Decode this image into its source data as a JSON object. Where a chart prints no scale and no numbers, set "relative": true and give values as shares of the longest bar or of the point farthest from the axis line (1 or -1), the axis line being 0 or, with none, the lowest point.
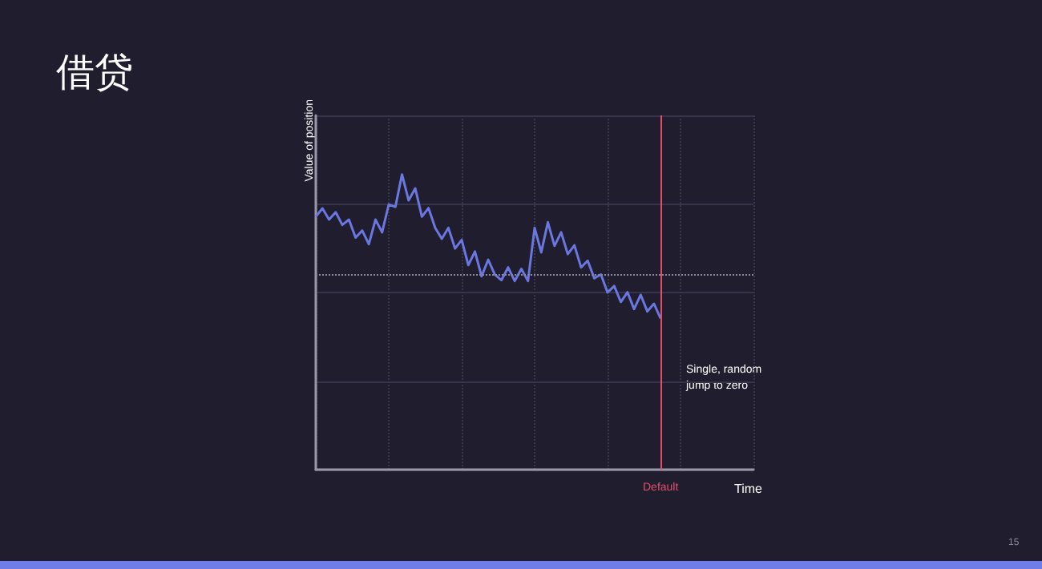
{
  "chart_data": {
    "type": "line",
    "title": "借贷",
    "xlabel": "Time",
    "ylabel": "Value of position",
    "relative": true,
    "grid": true,
    "marker": "none",
    "line_style": "solid",
    "categories": [
      null,
      null,
      null,
      null,
      null,
      null,
      null,
      null,
      null,
      null,
      null,
      null,
      null,
      null,
      null,
      null,
      null,
      null,
      null,
      null,
      null,
      null,
      null,
      null,
      null,
      null,
      null,
      null,
      null,
      null,
      null,
      null,
      null,
      null,
      null,
      null,
      null,
      null,
      null,
      null,
      null,
      null,
      null,
      null,
      null,
      null,
      null,
      null,
      null,
      null,
      null,
      null,
      null,
      null,
      null,
      null,
      null,
      null,
      null,
      null,
      null,
      null,
      null,
      null,
      null,
      null,
      null
    ],
    "series": [
      {
        "color": "#6b77e0",
        "values": [
          0.857,
          0.885,
          0.847,
          0.872,
          0.829,
          0.847,
          0.786,
          0.81,
          0.764,
          0.847,
          0.804,
          0.898,
          0.89,
          1.0,
          0.912,
          0.953,
          0.857,
          0.886,
          0.819,
          0.782,
          0.819,
          0.749,
          0.778,
          0.693,
          0.739,
          0.655,
          0.711,
          0.661,
          0.642,
          0.685,
          0.639,
          0.68,
          0.639,
          0.819,
          0.736,
          0.838,
          0.758,
          0.804,
          0.73,
          0.76,
          0.685,
          0.708,
          0.648,
          0.661,
          0.6,
          0.622,
          0.568,
          0.601,
          0.544,
          0.592,
          0.536,
          0.562,
          0.512,
          null,
          null,
          null,
          null,
          null,
          null,
          null,
          null,
          null,
          null,
          null,
          null,
          null,
          null
        ]
      }
    ],
    "ref_lines": [
      {
        "axis": "x",
        "label": "Default",
        "color": "#e0506a",
        "line_style": "solid"
      },
      {
        "axis": "y",
        "value": 0.657,
        "color": "#8a8898",
        "line_style": "dotted"
      }
    ],
    "annotations": [
      "Single, random jump to zero",
      "15"
    ]
  }
}
